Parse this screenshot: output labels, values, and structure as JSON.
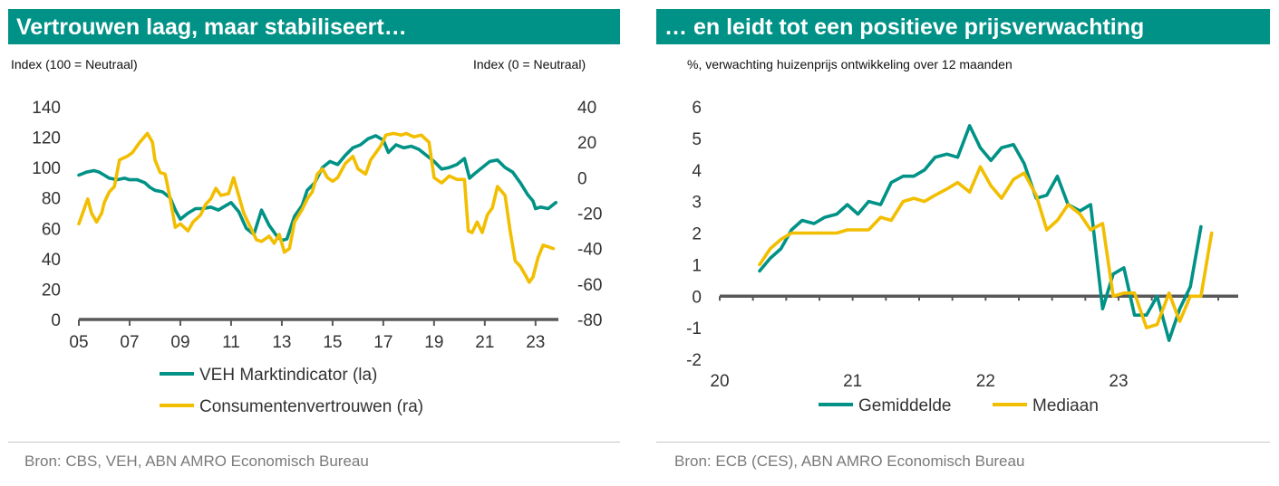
{
  "left": {
    "title": "Vertrouwen laag, maar stabiliseert…",
    "left_axis_label": "Index (100 = Neutraal)",
    "right_axis_label": "Index (0 = Neutraal)",
    "source": "Bron: CBS, VEH, ABN AMRO Economisch Bureau"
  },
  "right": {
    "title": "… en leidt tot een positieve prijsverwachting",
    "axis_label": "%, verwachting huizenprijs ontwikkeling over 12 maanden",
    "source": "Bron: ECB (CES), ABN AMRO Economisch Bureau"
  },
  "colors": {
    "teal": "#009286",
    "gold": "#F2BE00",
    "axis": "#595959",
    "rule": "#c7c7c7"
  },
  "chart_data": [
    {
      "type": "line",
      "x_tick_labels": [
        "05",
        "07",
        "09",
        "11",
        "13",
        "15",
        "17",
        "19",
        "21",
        "23"
      ],
      "xlim": [
        2005,
        2023.9
      ],
      "y_left": {
        "ticks": [
          0,
          20,
          40,
          60,
          80,
          100,
          120,
          140
        ],
        "ylim": [
          0,
          140
        ]
      },
      "y_right": {
        "ticks": [
          -80,
          -60,
          -40,
          -20,
          0,
          20,
          40
        ],
        "ylim": [
          -80,
          40
        ]
      },
      "legend_position": "bottom",
      "series": [
        {
          "name": "VEH Marktindicator (la)",
          "axis": "left",
          "color": "#009286",
          "points": [
            [
              2005.0,
              95
            ],
            [
              2005.3,
              97
            ],
            [
              2005.6,
              98
            ],
            [
              2005.8,
              97
            ],
            [
              2006.0,
              95
            ],
            [
              2006.2,
              93
            ],
            [
              2006.5,
              92
            ],
            [
              2006.8,
              93
            ],
            [
              2007.0,
              92
            ],
            [
              2007.3,
              92
            ],
            [
              2007.6,
              90
            ],
            [
              2007.8,
              87
            ],
            [
              2008.0,
              85
            ],
            [
              2008.3,
              84
            ],
            [
              2008.6,
              80
            ],
            [
              2008.8,
              72
            ],
            [
              2009.0,
              66
            ],
            [
              2009.3,
              70
            ],
            [
              2009.6,
              73
            ],
            [
              2009.9,
              73
            ],
            [
              2010.2,
              74
            ],
            [
              2010.5,
              72
            ],
            [
              2010.8,
              75
            ],
            [
              2011.0,
              77
            ],
            [
              2011.3,
              71
            ],
            [
              2011.6,
              60
            ],
            [
              2011.9,
              56
            ],
            [
              2012.2,
              72
            ],
            [
              2012.5,
              62
            ],
            [
              2012.8,
              55
            ],
            [
              2013.0,
              52
            ],
            [
              2013.2,
              53
            ],
            [
              2013.5,
              68
            ],
            [
              2013.8,
              75
            ],
            [
              2014.0,
              85
            ],
            [
              2014.3,
              90
            ],
            [
              2014.6,
              100
            ],
            [
              2014.9,
              104
            ],
            [
              2015.2,
              102
            ],
            [
              2015.5,
              108
            ],
            [
              2015.8,
              113
            ],
            [
              2016.1,
              115
            ],
            [
              2016.4,
              119
            ],
            [
              2016.7,
              121
            ],
            [
              2017.0,
              118
            ],
            [
              2017.2,
              110
            ],
            [
              2017.5,
              115
            ],
            [
              2017.8,
              113
            ],
            [
              2018.1,
              114
            ],
            [
              2018.4,
              112
            ],
            [
              2018.7,
              108
            ],
            [
              2019.0,
              104
            ],
            [
              2019.3,
              99
            ],
            [
              2019.6,
              100
            ],
            [
              2019.9,
              102
            ],
            [
              2020.2,
              106
            ],
            [
              2020.4,
              93
            ],
            [
              2020.6,
              96
            ],
            [
              2020.9,
              100
            ],
            [
              2021.2,
              104
            ],
            [
              2021.5,
              105
            ],
            [
              2021.8,
              100
            ],
            [
              2022.1,
              97
            ],
            [
              2022.4,
              90
            ],
            [
              2022.7,
              82
            ],
            [
              2022.9,
              78
            ],
            [
              2023.0,
              73
            ],
            [
              2023.2,
              74
            ],
            [
              2023.5,
              73
            ],
            [
              2023.8,
              77
            ]
          ]
        },
        {
          "name": "Consumentenvertrouwen (ra)",
          "axis": "right",
          "color": "#F2BE00",
          "points": [
            [
              2005.0,
              -26
            ],
            [
              2005.2,
              -18
            ],
            [
              2005.35,
              -12
            ],
            [
              2005.5,
              -20
            ],
            [
              2005.7,
              -25
            ],
            [
              2005.9,
              -20
            ],
            [
              2006.0,
              -14
            ],
            [
              2006.2,
              -8
            ],
            [
              2006.4,
              -5
            ],
            [
              2006.6,
              10
            ],
            [
              2006.9,
              12
            ],
            [
              2007.1,
              14
            ],
            [
              2007.4,
              20
            ],
            [
              2007.7,
              25
            ],
            [
              2007.9,
              20
            ],
            [
              2008.0,
              10
            ],
            [
              2008.2,
              3
            ],
            [
              2008.4,
              2
            ],
            [
              2008.6,
              -12
            ],
            [
              2008.8,
              -28
            ],
            [
              2009.0,
              -26
            ],
            [
              2009.3,
              -30
            ],
            [
              2009.5,
              -25
            ],
            [
              2009.8,
              -21
            ],
            [
              2010.0,
              -15
            ],
            [
              2010.2,
              -12
            ],
            [
              2010.4,
              -6
            ],
            [
              2010.6,
              -10
            ],
            [
              2010.9,
              -9
            ],
            [
              2011.1,
              0
            ],
            [
              2011.3,
              -10
            ],
            [
              2011.5,
              -20
            ],
            [
              2011.7,
              -26
            ],
            [
              2012.0,
              -35
            ],
            [
              2012.2,
              -36
            ],
            [
              2012.5,
              -33
            ],
            [
              2012.7,
              -37
            ],
            [
              2012.9,
              -32
            ],
            [
              2013.1,
              -42
            ],
            [
              2013.3,
              -40
            ],
            [
              2013.5,
              -25
            ],
            [
              2013.8,
              -18
            ],
            [
              2014.0,
              -12
            ],
            [
              2014.2,
              -8
            ],
            [
              2014.4,
              2
            ],
            [
              2014.6,
              5
            ],
            [
              2014.8,
              0
            ],
            [
              2015.0,
              -2
            ],
            [
              2015.2,
              0
            ],
            [
              2015.5,
              8
            ],
            [
              2015.8,
              12
            ],
            [
              2016.0,
              5
            ],
            [
              2016.3,
              2
            ],
            [
              2016.5,
              10
            ],
            [
              2016.7,
              14
            ],
            [
              2016.9,
              18
            ],
            [
              2017.1,
              24
            ],
            [
              2017.4,
              25
            ],
            [
              2017.7,
              24
            ],
            [
              2017.9,
              25
            ],
            [
              2018.2,
              23
            ],
            [
              2018.5,
              24
            ],
            [
              2018.8,
              20
            ],
            [
              2019.0,
              0
            ],
            [
              2019.3,
              -3
            ],
            [
              2019.6,
              1
            ],
            [
              2019.9,
              -1
            ],
            [
              2020.2,
              -1
            ],
            [
              2020.35,
              -30
            ],
            [
              2020.5,
              -31
            ],
            [
              2020.7,
              -25
            ],
            [
              2020.9,
              -31
            ],
            [
              2021.1,
              -21
            ],
            [
              2021.3,
              -17
            ],
            [
              2021.5,
              -5
            ],
            [
              2021.8,
              -10
            ],
            [
              2022.0,
              -30
            ],
            [
              2022.2,
              -47
            ],
            [
              2022.4,
              -50
            ],
            [
              2022.6,
              -55
            ],
            [
              2022.75,
              -59
            ],
            [
              2022.9,
              -56
            ],
            [
              2023.1,
              -45
            ],
            [
              2023.3,
              -38
            ],
            [
              2023.5,
              -39
            ],
            [
              2023.7,
              -40
            ]
          ]
        }
      ]
    },
    {
      "type": "line",
      "x_tick_labels": [
        "20",
        "21",
        "22",
        "23"
      ],
      "xlim": [
        2020,
        2023.9
      ],
      "y": {
        "ticks": [
          -2,
          -1,
          0,
          1,
          2,
          3,
          4,
          5,
          6
        ],
        "ylim": [
          -2,
          6
        ]
      },
      "legend_position": "bottom",
      "series": [
        {
          "name": "Gemiddelde",
          "color": "#009286",
          "points": [
            [
              2020.3,
              0.8
            ],
            [
              2020.38,
              1.2
            ],
            [
              2020.46,
              1.5
            ],
            [
              2020.54,
              2.1
            ],
            [
              2020.62,
              2.4
            ],
            [
              2020.71,
              2.3
            ],
            [
              2020.79,
              2.5
            ],
            [
              2020.88,
              2.6
            ],
            [
              2020.96,
              2.9
            ],
            [
              2021.04,
              2.6
            ],
            [
              2021.12,
              3.0
            ],
            [
              2021.21,
              2.9
            ],
            [
              2021.29,
              3.6
            ],
            [
              2021.38,
              3.8
            ],
            [
              2021.46,
              3.8
            ],
            [
              2021.54,
              4.0
            ],
            [
              2021.62,
              4.4
            ],
            [
              2021.71,
              4.5
            ],
            [
              2021.79,
              4.4
            ],
            [
              2021.88,
              5.4
            ],
            [
              2021.96,
              4.7
            ],
            [
              2022.04,
              4.3
            ],
            [
              2022.12,
              4.7
            ],
            [
              2022.21,
              4.8
            ],
            [
              2022.29,
              4.2
            ],
            [
              2022.38,
              3.1
            ],
            [
              2022.46,
              3.2
            ],
            [
              2022.54,
              3.8
            ],
            [
              2022.62,
              2.9
            ],
            [
              2022.71,
              2.7
            ],
            [
              2022.79,
              2.9
            ],
            [
              2022.88,
              -0.4
            ],
            [
              2022.96,
              0.7
            ],
            [
              2023.04,
              0.9
            ],
            [
              2023.12,
              -0.6
            ],
            [
              2023.21,
              -0.6
            ],
            [
              2023.29,
              0.0
            ],
            [
              2023.38,
              -1.4
            ],
            [
              2023.46,
              -0.4
            ],
            [
              2023.54,
              0.3
            ],
            [
              2023.62,
              2.2
            ]
          ]
        },
        {
          "name": "Mediaan",
          "color": "#F2BE00",
          "points": [
            [
              2020.3,
              1.0
            ],
            [
              2020.38,
              1.5
            ],
            [
              2020.46,
              1.8
            ],
            [
              2020.54,
              2.0
            ],
            [
              2020.62,
              2.0
            ],
            [
              2020.71,
              2.0
            ],
            [
              2020.79,
              2.0
            ],
            [
              2020.88,
              2.0
            ],
            [
              2020.96,
              2.1
            ],
            [
              2021.04,
              2.1
            ],
            [
              2021.12,
              2.1
            ],
            [
              2021.21,
              2.5
            ],
            [
              2021.29,
              2.4
            ],
            [
              2021.38,
              3.0
            ],
            [
              2021.46,
              3.1
            ],
            [
              2021.54,
              3.0
            ],
            [
              2021.62,
              3.2
            ],
            [
              2021.71,
              3.4
            ],
            [
              2021.79,
              3.6
            ],
            [
              2021.88,
              3.3
            ],
            [
              2021.96,
              4.1
            ],
            [
              2022.04,
              3.5
            ],
            [
              2022.12,
              3.1
            ],
            [
              2022.21,
              3.7
            ],
            [
              2022.29,
              3.9
            ],
            [
              2022.38,
              3.2
            ],
            [
              2022.46,
              2.1
            ],
            [
              2022.54,
              2.4
            ],
            [
              2022.62,
              2.9
            ],
            [
              2022.71,
              2.6
            ],
            [
              2022.79,
              2.1
            ],
            [
              2022.88,
              2.3
            ],
            [
              2022.96,
              0.0
            ],
            [
              2023.04,
              0.1
            ],
            [
              2023.12,
              0.1
            ],
            [
              2023.21,
              -1.0
            ],
            [
              2023.29,
              -0.9
            ],
            [
              2023.38,
              0.1
            ],
            [
              2023.46,
              -0.8
            ],
            [
              2023.54,
              0.0
            ],
            [
              2023.62,
              0.0
            ],
            [
              2023.7,
              2.0
            ]
          ]
        }
      ]
    }
  ]
}
